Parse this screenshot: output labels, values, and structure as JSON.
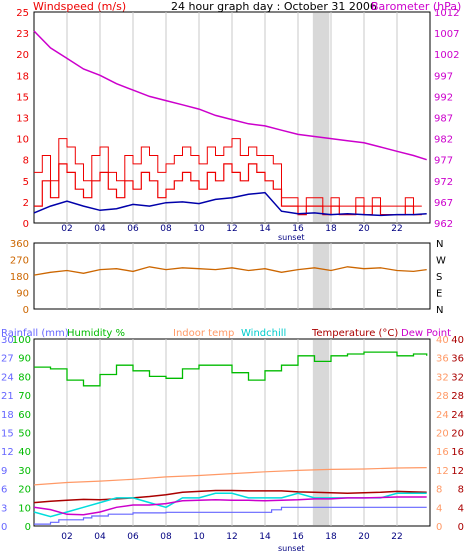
{
  "title": "24 hour graph day : October 31 2006",
  "colors": {
    "wind": "#ee0000",
    "gust": "#ee0000",
    "wind_avg": "#0000aa",
    "barometer": "#cc00cc",
    "direction": "#cc6600",
    "rain": "#6666ff",
    "humidity": "#00bb00",
    "indoor_temp": "#ff9966",
    "windchill": "#00dddd",
    "temperature": "#aa0000",
    "dewpoint": "#cc00cc",
    "grid": "#c8c8c8",
    "sunset_band": "#d8d8d8"
  },
  "chart_data": [
    {
      "type": "line",
      "name": "wind-barometer",
      "x_ticks": [
        "02",
        "04",
        "06",
        "08",
        "10",
        "12",
        "14",
        "16",
        "18",
        "20",
        "22"
      ],
      "x_note": "sunset",
      "left_axis": {
        "label": "Windspeed (m/s)",
        "ylim": [
          0,
          25
        ],
        "ticks": [
          "0",
          "2",
          "5",
          "8",
          "10",
          "13",
          "15",
          "18",
          "20",
          "23",
          "25"
        ]
      },
      "right_axis": {
        "label": "Barometer (hPa)",
        "ylim": [
          962,
          1012
        ],
        "ticks": [
          "962",
          "967",
          "972",
          "977",
          "982",
          "987",
          "992",
          "997",
          "1002",
          "1007",
          "1012"
        ]
      },
      "series": [
        {
          "key": "wind",
          "axis": "left",
          "x": [
            0,
            0.5,
            1,
            1.5,
            2,
            2.5,
            3,
            3.5,
            4,
            4.5,
            5,
            5.5,
            6,
            6.5,
            7,
            7.5,
            8,
            8.5,
            9,
            9.5,
            10,
            10.5,
            11,
            11.5,
            12,
            12.5,
            13,
            13.5,
            14,
            14.5,
            15,
            15.5,
            16,
            16.5,
            17,
            17.5,
            18,
            18.5,
            19,
            19.5,
            20,
            20.5,
            21,
            21.5,
            22,
            22.5,
            23,
            23.5
          ],
          "values": [
            2,
            5,
            3,
            7,
            6,
            4,
            3,
            5,
            6,
            4,
            3,
            5,
            4,
            6,
            5,
            3,
            4,
            5,
            6,
            5,
            4,
            6,
            5,
            7,
            6,
            5,
            7,
            6,
            5,
            4,
            2,
            2,
            1,
            2,
            2,
            1,
            2,
            1,
            1,
            2,
            1,
            2,
            1,
            1,
            1,
            2,
            1,
            1
          ]
        },
        {
          "key": "gust",
          "axis": "left",
          "x": [
            0,
            0.5,
            1,
            1.5,
            2,
            2.5,
            3,
            3.5,
            4,
            4.5,
            5,
            5.5,
            6,
            6.5,
            7,
            7.5,
            8,
            8.5,
            9,
            9.5,
            10,
            10.5,
            11,
            11.5,
            12,
            12.5,
            13,
            13.5,
            14,
            14.5,
            15,
            15.5,
            16,
            16.5,
            17,
            17.5,
            18,
            18.5,
            19,
            19.5,
            20,
            20.5,
            21,
            21.5,
            22,
            22.5,
            23,
            23.5
          ],
          "values": [
            6,
            8,
            5,
            10,
            9,
            7,
            5,
            8,
            9,
            6,
            5,
            8,
            7,
            9,
            8,
            6,
            7,
            8,
            9,
            8,
            7,
            9,
            8,
            9,
            10,
            8,
            9,
            8,
            8,
            7,
            3,
            3,
            2,
            3,
            3,
            2,
            3,
            2,
            2,
            3,
            2,
            3,
            2,
            2,
            2,
            3,
            2,
            2
          ]
        },
        {
          "key": "wind_avg",
          "axis": "left",
          "x": [
            0,
            1,
            2,
            3,
            4,
            5,
            6,
            7,
            8,
            9,
            10,
            11,
            12,
            13,
            14,
            15,
            16,
            17,
            18,
            19,
            20,
            21,
            22,
            23,
            23.8
          ],
          "values": [
            1.2,
            2,
            2.6,
            2,
            1.5,
            1.7,
            2.2,
            2,
            2.4,
            2.5,
            2.3,
            2.8,
            3,
            3.4,
            3.6,
            1.4,
            1.1,
            1.2,
            1,
            1.1,
            1,
            0.9,
            1,
            1,
            1.1
          ]
        },
        {
          "key": "barometer",
          "axis": "right",
          "x": [
            0,
            1,
            2,
            3,
            4,
            5,
            6,
            7,
            8,
            9,
            10,
            11,
            12,
            13,
            14,
            15,
            16,
            17,
            18,
            19,
            20,
            21,
            22,
            23,
            23.8
          ],
          "values": [
            1007.5,
            1003.5,
            1001,
            998.5,
            997,
            995,
            993.5,
            992,
            991,
            990,
            989,
            987.5,
            986.5,
            985.5,
            985,
            984,
            983,
            982.5,
            982,
            981.5,
            981,
            980,
            979,
            978,
            977
          ]
        }
      ]
    },
    {
      "type": "line",
      "name": "wind-direction",
      "left_axis": {
        "ylim": [
          0,
          360
        ],
        "ticks": [
          "0",
          "90",
          "180",
          "270",
          "360"
        ]
      },
      "right_axis": {
        "ticks": [
          "N",
          "E",
          "S",
          "W",
          "N"
        ]
      },
      "series": [
        {
          "key": "direction",
          "axis": "left",
          "x": [
            0,
            1,
            2,
            3,
            4,
            5,
            6,
            7,
            8,
            9,
            10,
            11,
            12,
            13,
            14,
            15,
            16,
            17,
            18,
            19,
            20,
            21,
            22,
            23,
            23.8
          ],
          "values": [
            185,
            200,
            210,
            195,
            215,
            220,
            205,
            230,
            215,
            225,
            220,
            215,
            225,
            210,
            220,
            200,
            215,
            225,
            210,
            230,
            220,
            225,
            210,
            205,
            215
          ]
        }
      ]
    },
    {
      "type": "line",
      "name": "humidity-temperature",
      "x_ticks": [
        "02",
        "04",
        "06",
        "08",
        "10",
        "12",
        "14",
        "16",
        "18",
        "20",
        "22"
      ],
      "x_note": "sunset",
      "legend": [
        "Rainfall (mm)",
        "Humidity %",
        "Indoor temp",
        "Windchill",
        "Temperature (°C)",
        "Dew Point"
      ],
      "axes": {
        "rain": {
          "ylim": [
            0,
            30
          ],
          "ticks": [
            "0",
            "3",
            "6",
            "9",
            "12",
            "15",
            "18",
            "21",
            "24",
            "27",
            "30"
          ]
        },
        "humidity": {
          "ylim": [
            0,
            100
          ],
          "ticks": [
            "0",
            "10",
            "20",
            "30",
            "40",
            "50",
            "60",
            "70",
            "80",
            "90",
            "100"
          ]
        },
        "temp": {
          "ylim": [
            0,
            40
          ],
          "ticks": [
            "0",
            "4",
            "8",
            "12",
            "16",
            "20",
            "24",
            "28",
            "32",
            "36",
            "40"
          ]
        }
      },
      "series": [
        {
          "key": "humidity",
          "axis": "humidity",
          "x": [
            0,
            1,
            2,
            3,
            4,
            5,
            6,
            7,
            8,
            9,
            10,
            11,
            12,
            13,
            14,
            15,
            16,
            17,
            18,
            19,
            20,
            21,
            22,
            23,
            23.8
          ],
          "values": [
            85,
            84,
            78,
            75,
            81,
            86,
            83,
            80,
            79,
            84,
            86,
            86,
            82,
            78,
            83,
            86,
            91,
            88,
            91,
            92,
            93,
            93,
            91,
            92,
            91
          ]
        },
        {
          "key": "indoor_temp",
          "axis": "temp",
          "x": [
            0,
            2,
            4,
            6,
            8,
            10,
            12,
            14,
            16,
            18,
            20,
            22,
            23.8
          ],
          "values": [
            8.8,
            9.3,
            9.6,
            10,
            10.5,
            10.8,
            11.2,
            11.6,
            11.9,
            12.1,
            12.2,
            12.4,
            12.5
          ]
        },
        {
          "key": "temperature",
          "axis": "temp",
          "x": [
            0,
            1,
            2,
            3,
            4,
            5,
            6,
            7,
            8,
            9,
            10,
            11,
            12,
            13,
            14,
            15,
            16,
            17,
            18,
            19,
            20,
            21,
            22,
            23,
            23.8
          ],
          "values": [
            5,
            5.3,
            5.5,
            5.7,
            5.6,
            5.8,
            6,
            6.3,
            6.7,
            7.2,
            7.4,
            7.6,
            7.6,
            7.5,
            7.5,
            7.5,
            7.3,
            7.2,
            7.1,
            7,
            7.1,
            7.2,
            7.4,
            7.3,
            7.2
          ]
        },
        {
          "key": "windchill",
          "axis": "temp",
          "x": [
            0,
            1,
            2,
            3,
            4,
            5,
            6,
            7,
            8,
            9,
            10,
            11,
            12,
            13,
            14,
            15,
            16,
            17,
            18,
            19,
            20,
            21,
            22,
            23,
            23.8
          ],
          "values": [
            3,
            2,
            3,
            4,
            5,
            6,
            6,
            5,
            4,
            6,
            6,
            7,
            7,
            6,
            6,
            6,
            7,
            6,
            6,
            6,
            6,
            6,
            7,
            7,
            7
          ]
        },
        {
          "key": "dewpoint",
          "axis": "temp",
          "x": [
            0,
            1,
            2,
            3,
            4,
            5,
            6,
            7,
            8,
            9,
            10,
            11,
            12,
            13,
            14,
            15,
            16,
            17,
            18,
            19,
            20,
            21,
            22,
            23,
            23.8
          ],
          "values": [
            4,
            3.5,
            2.5,
            2.4,
            3,
            4,
            4.5,
            4.5,
            4.8,
            5.4,
            5.5,
            5.6,
            5.5,
            5.5,
            5.4,
            5.5,
            5.6,
            5.8,
            5.8,
            6,
            6,
            6.1,
            6.2,
            6.2,
            6.2
          ]
        },
        {
          "key": "rain",
          "axis": "rain",
          "x": [
            0,
            1,
            1.5,
            3,
            3.5,
            4.5,
            6,
            8,
            10,
            12,
            14,
            14.4,
            15,
            18,
            20,
            22,
            23.8
          ],
          "values": [
            0.3,
            0.6,
            1.0,
            1.3,
            1.6,
            1.9,
            2.1,
            2.2,
            2.2,
            2.2,
            2.2,
            2.6,
            3.0,
            3.0,
            3.0,
            3.0,
            3.0
          ]
        }
      ]
    }
  ]
}
